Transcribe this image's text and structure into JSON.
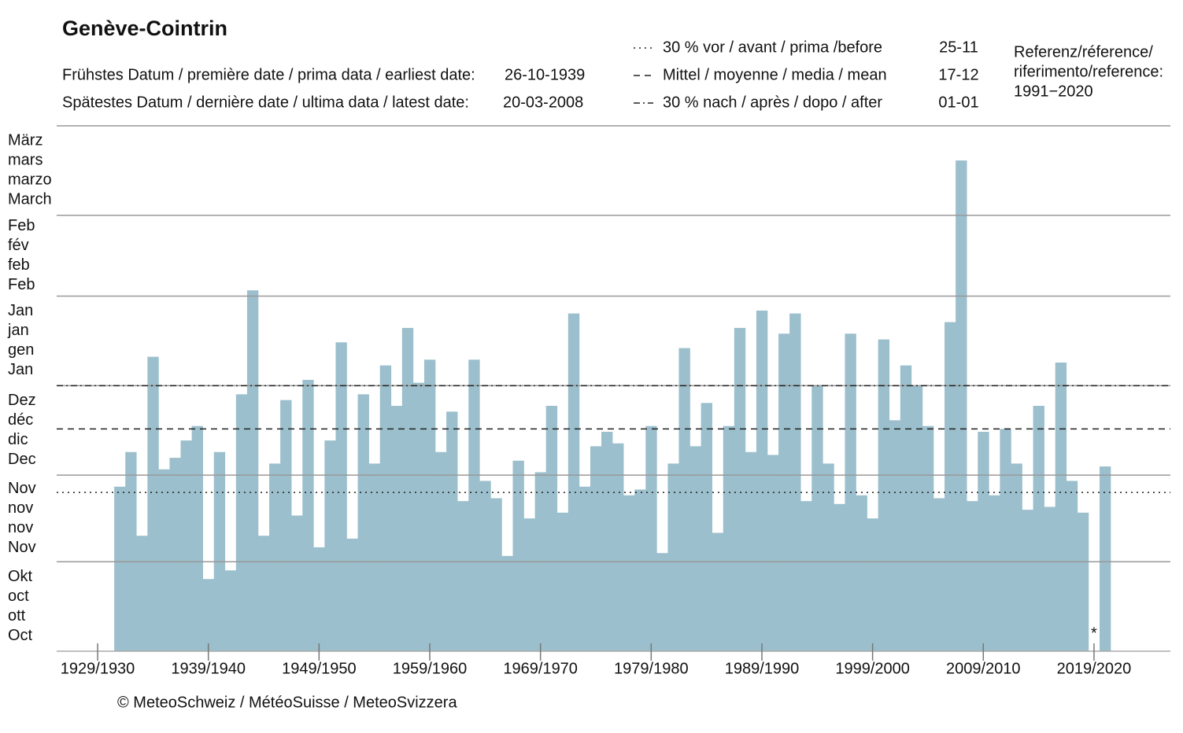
{
  "chart_data": {
    "type": "bar",
    "title": "Genève-Cointrin",
    "earliest": {
      "label": "Frühstes Datum / première date / prima data / earliest date:",
      "date": "26-10-1939"
    },
    "latest": {
      "label": "Spätestes Datum / dernière date /  ultima data / latest date:",
      "date": "20-03-2008"
    },
    "reference_lines": [
      {
        "label": "30 % vor / avant / prima /before",
        "date": "25-11",
        "value": 55,
        "style": "dotted"
      },
      {
        "label": "Mittel / moyenne / media / mean",
        "date": "17-12",
        "value": 77,
        "style": "dashed"
      },
      {
        "label": "30 % nach / après / dopo / after",
        "date": "01-01",
        "value": 92,
        "style": "dashdot"
      }
    ],
    "reference_period": [
      "Referenz/réference/",
      "riferimento/reference:",
      "1991−2020"
    ],
    "copyright": "© MeteoSchweiz / MétéoSuisse / MeteoSvizzera",
    "annotation": {
      "text": "*",
      "x": 2019
    },
    "color": "#9bbfcc",
    "x": [
      1931,
      1932,
      1933,
      1934,
      1935,
      1936,
      1937,
      1938,
      1939,
      1940,
      1941,
      1942,
      1943,
      1944,
      1945,
      1946,
      1947,
      1948,
      1949,
      1950,
      1951,
      1952,
      1953,
      1954,
      1955,
      1956,
      1957,
      1958,
      1959,
      1960,
      1961,
      1962,
      1963,
      1964,
      1965,
      1966,
      1967,
      1968,
      1969,
      1970,
      1971,
      1972,
      1973,
      1974,
      1975,
      1976,
      1977,
      1978,
      1979,
      1980,
      1981,
      1982,
      1983,
      1984,
      1985,
      1986,
      1987,
      1988,
      1989,
      1990,
      1991,
      1992,
      1993,
      1994,
      1995,
      1996,
      1997,
      1998,
      1999,
      2000,
      2001,
      2002,
      2003,
      2004,
      2005,
      2006,
      2007,
      2008,
      2009,
      2010,
      2011,
      2012,
      2013,
      2014,
      2015,
      2016,
      2017,
      2018,
      2019,
      2020
    ],
    "values": [
      57,
      69,
      40,
      102,
      63,
      67,
      73,
      78,
      25,
      69,
      28,
      89,
      125,
      40,
      65,
      87,
      47,
      94,
      36,
      73,
      107,
      39,
      89,
      65,
      99,
      85,
      112,
      93,
      101,
      69,
      83,
      52,
      101,
      59,
      53,
      33,
      66,
      46,
      62,
      85,
      48,
      117,
      57,
      71,
      76,
      72,
      54,
      56,
      78,
      34,
      65,
      105,
      71,
      86,
      41,
      78,
      112,
      69,
      118,
      68,
      110,
      117,
      52,
      92,
      65,
      51,
      110,
      54,
      46,
      108,
      80,
      99,
      92,
      78,
      53,
      114,
      170,
      52,
      76,
      54,
      77,
      65,
      49,
      85,
      50,
      100,
      59,
      48,
      null,
      64
    ],
    "xlim": [
      1925.3,
      2025.9
    ],
    "xticks": [
      {
        "value": 1929,
        "label": "1929/1930"
      },
      {
        "value": 1939,
        "label": "1939/1940"
      },
      {
        "value": 1949,
        "label": "1949/1950"
      },
      {
        "value": 1959,
        "label": "1959/1960"
      },
      {
        "value": 1969,
        "label": "1969/1970"
      },
      {
        "value": 1979,
        "label": "1979/1980"
      },
      {
        "value": 1989,
        "label": "1989/1990"
      },
      {
        "value": 1999,
        "label": "1999/2000"
      },
      {
        "value": 2009,
        "label": "2009/2010"
      },
      {
        "value": 2019,
        "label": "2019/2020"
      }
    ],
    "ylim": [
      0,
      182
    ],
    "yticks": [
      0,
      31,
      61,
      92,
      123,
      151,
      182
    ],
    "y_month_labels": [
      [
        "Okt",
        "oct",
        "ott",
        "Oct"
      ],
      [
        "Nov",
        "nov",
        "nov",
        "Nov"
      ],
      [
        "Dez",
        "déc",
        "dic",
        "Dec"
      ],
      [
        "Jan",
        "jan",
        "gen",
        "Jan"
      ],
      [
        "Feb",
        "fév",
        "feb",
        "Feb"
      ],
      [
        "März",
        "mars",
        "marzo",
        "March"
      ]
    ],
    "grid": true
  }
}
